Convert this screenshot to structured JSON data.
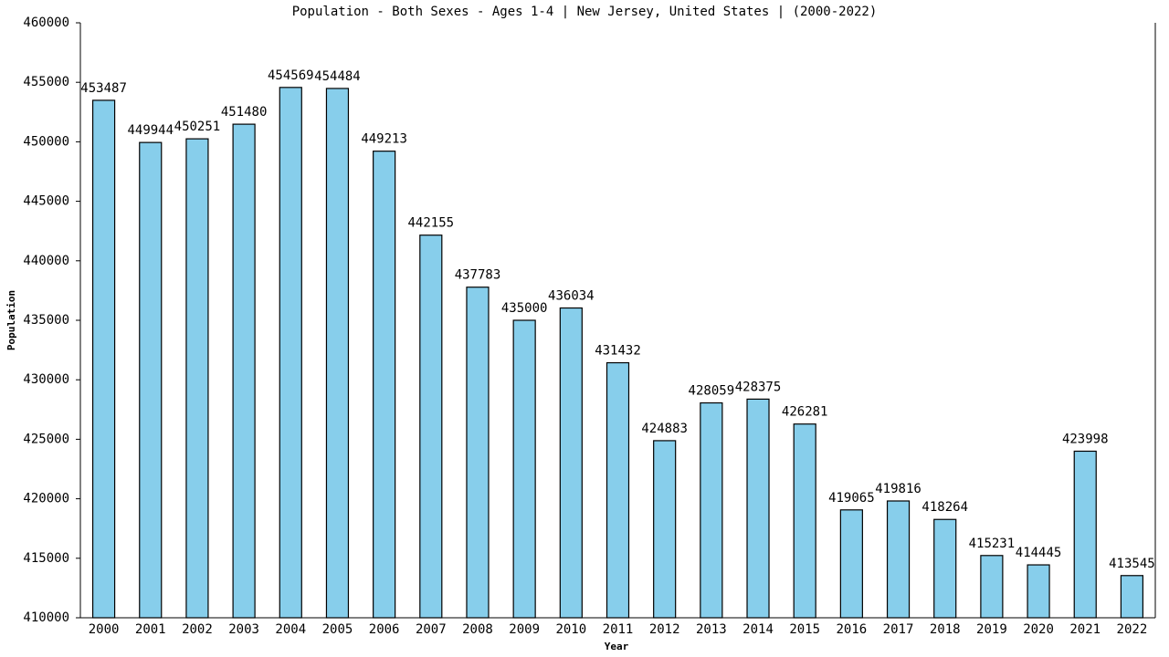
{
  "chart_data": {
    "type": "bar",
    "title": "Population - Both Sexes - Ages 1-4 | New Jersey, United States |  (2000-2022)",
    "x_label": "Year",
    "y_label": "Population",
    "categories": [
      "2000",
      "2001",
      "2002",
      "2003",
      "2004",
      "2005",
      "2006",
      "2007",
      "2008",
      "2009",
      "2010",
      "2011",
      "2012",
      "2013",
      "2014",
      "2015",
      "2016",
      "2017",
      "2018",
      "2019",
      "2020",
      "2021",
      "2022"
    ],
    "values": [
      453487,
      449944,
      450251,
      451480,
      454569,
      454484,
      449213,
      442155,
      437783,
      435000,
      436034,
      431432,
      424883,
      428059,
      428375,
      426281,
      419065,
      419816,
      418264,
      415231,
      414445,
      423998,
      413545
    ],
    "color": "#87ceeb",
    "ylim": [
      410000,
      460000
    ],
    "yticks": [
      410000,
      415000,
      420000,
      425000,
      430000,
      435000,
      440000,
      445000,
      450000,
      455000,
      460000
    ],
    "grid": false
  }
}
